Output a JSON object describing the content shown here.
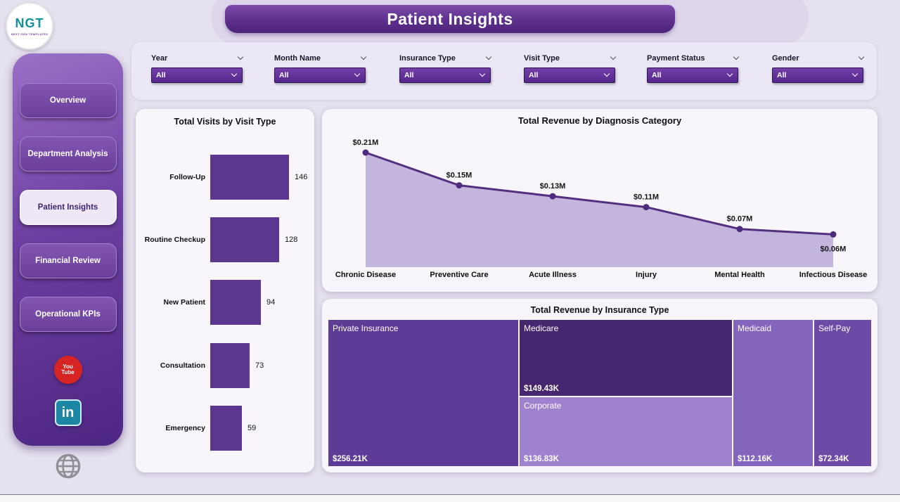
{
  "app": {
    "title": "Patient Insights",
    "logo_text": "NGT",
    "logo_tagline": "NEXT GEN TEMPLATES"
  },
  "sidebar": {
    "items": [
      {
        "label": "Overview",
        "active": false
      },
      {
        "label": "Department Analysis",
        "active": false
      },
      {
        "label": "Patient Insights",
        "active": true
      },
      {
        "label": "Financial Review",
        "active": false
      },
      {
        "label": "Operational KPIs",
        "active": false
      }
    ],
    "youtube_line1": "You",
    "youtube_line2": "Tube",
    "linkedin_text": "in",
    "social_icons": [
      "youtube-icon",
      "linkedin-icon",
      "globe-icon"
    ]
  },
  "filters": [
    {
      "label": "Year",
      "value": "All"
    },
    {
      "label": "Month Name",
      "value": "All"
    },
    {
      "label": "Insurance Type",
      "value": "All"
    },
    {
      "label": "Visit Type",
      "value": "All"
    },
    {
      "label": "Payment Status",
      "value": "All"
    },
    {
      "label": "Gender",
      "value": "All"
    }
  ],
  "chart_data": [
    {
      "type": "bar",
      "title": "Total Visits by Visit Type",
      "orientation": "horizontal",
      "categories": [
        "Follow-Up",
        "Routine Checkup",
        "New Patient",
        "Consultation",
        "Emergency"
      ],
      "values": [
        146,
        128,
        94,
        73,
        59
      ],
      "xlim": [
        0,
        146
      ],
      "bar_color": "#5b3790"
    },
    {
      "type": "area",
      "title": "Total Revenue by Diagnosis Category",
      "categories": [
        "Chronic Disease",
        "Preventive Care",
        "Acute Illness",
        "Injury",
        "Mental Health",
        "Infectious Disease"
      ],
      "values_millions": [
        0.21,
        0.15,
        0.13,
        0.11,
        0.07,
        0.06
      ],
      "point_labels": [
        "$0.21M",
        "$0.15M",
        "$0.13M",
        "$0.11M",
        "$0.07M",
        "$0.06M"
      ],
      "ylim": [
        0,
        0.25
      ],
      "grid": false,
      "line_color": "#53307f",
      "fill_color": "#beaedb",
      "marker_color": "#4d2b7d"
    },
    {
      "type": "treemap",
      "title": "Total Revenue by Insurance Type",
      "items": [
        {
          "label": "Private Insurance",
          "value_label": "$256.21K",
          "value_k": 256.21,
          "color": "#5d3b96"
        },
        {
          "label": "Medicare",
          "value_label": "$149.43K",
          "value_k": 149.43,
          "color": "#46276f"
        },
        {
          "label": "Corporate",
          "value_label": "$136.83K",
          "value_k": 136.83,
          "color": "#9f82cf"
        },
        {
          "label": "Medicaid",
          "value_label": "$112.16K",
          "value_k": 112.16,
          "color": "#8465bd"
        },
        {
          "label": "Self-Pay",
          "value_label": "$72.34K",
          "value_k": 72.34,
          "color": "#6d4aa6"
        }
      ]
    }
  ],
  "theme": {
    "page_bg": "#e6e1ee",
    "accent_purple": "#5b2d8e",
    "card_bg": "#f8f6fb"
  }
}
